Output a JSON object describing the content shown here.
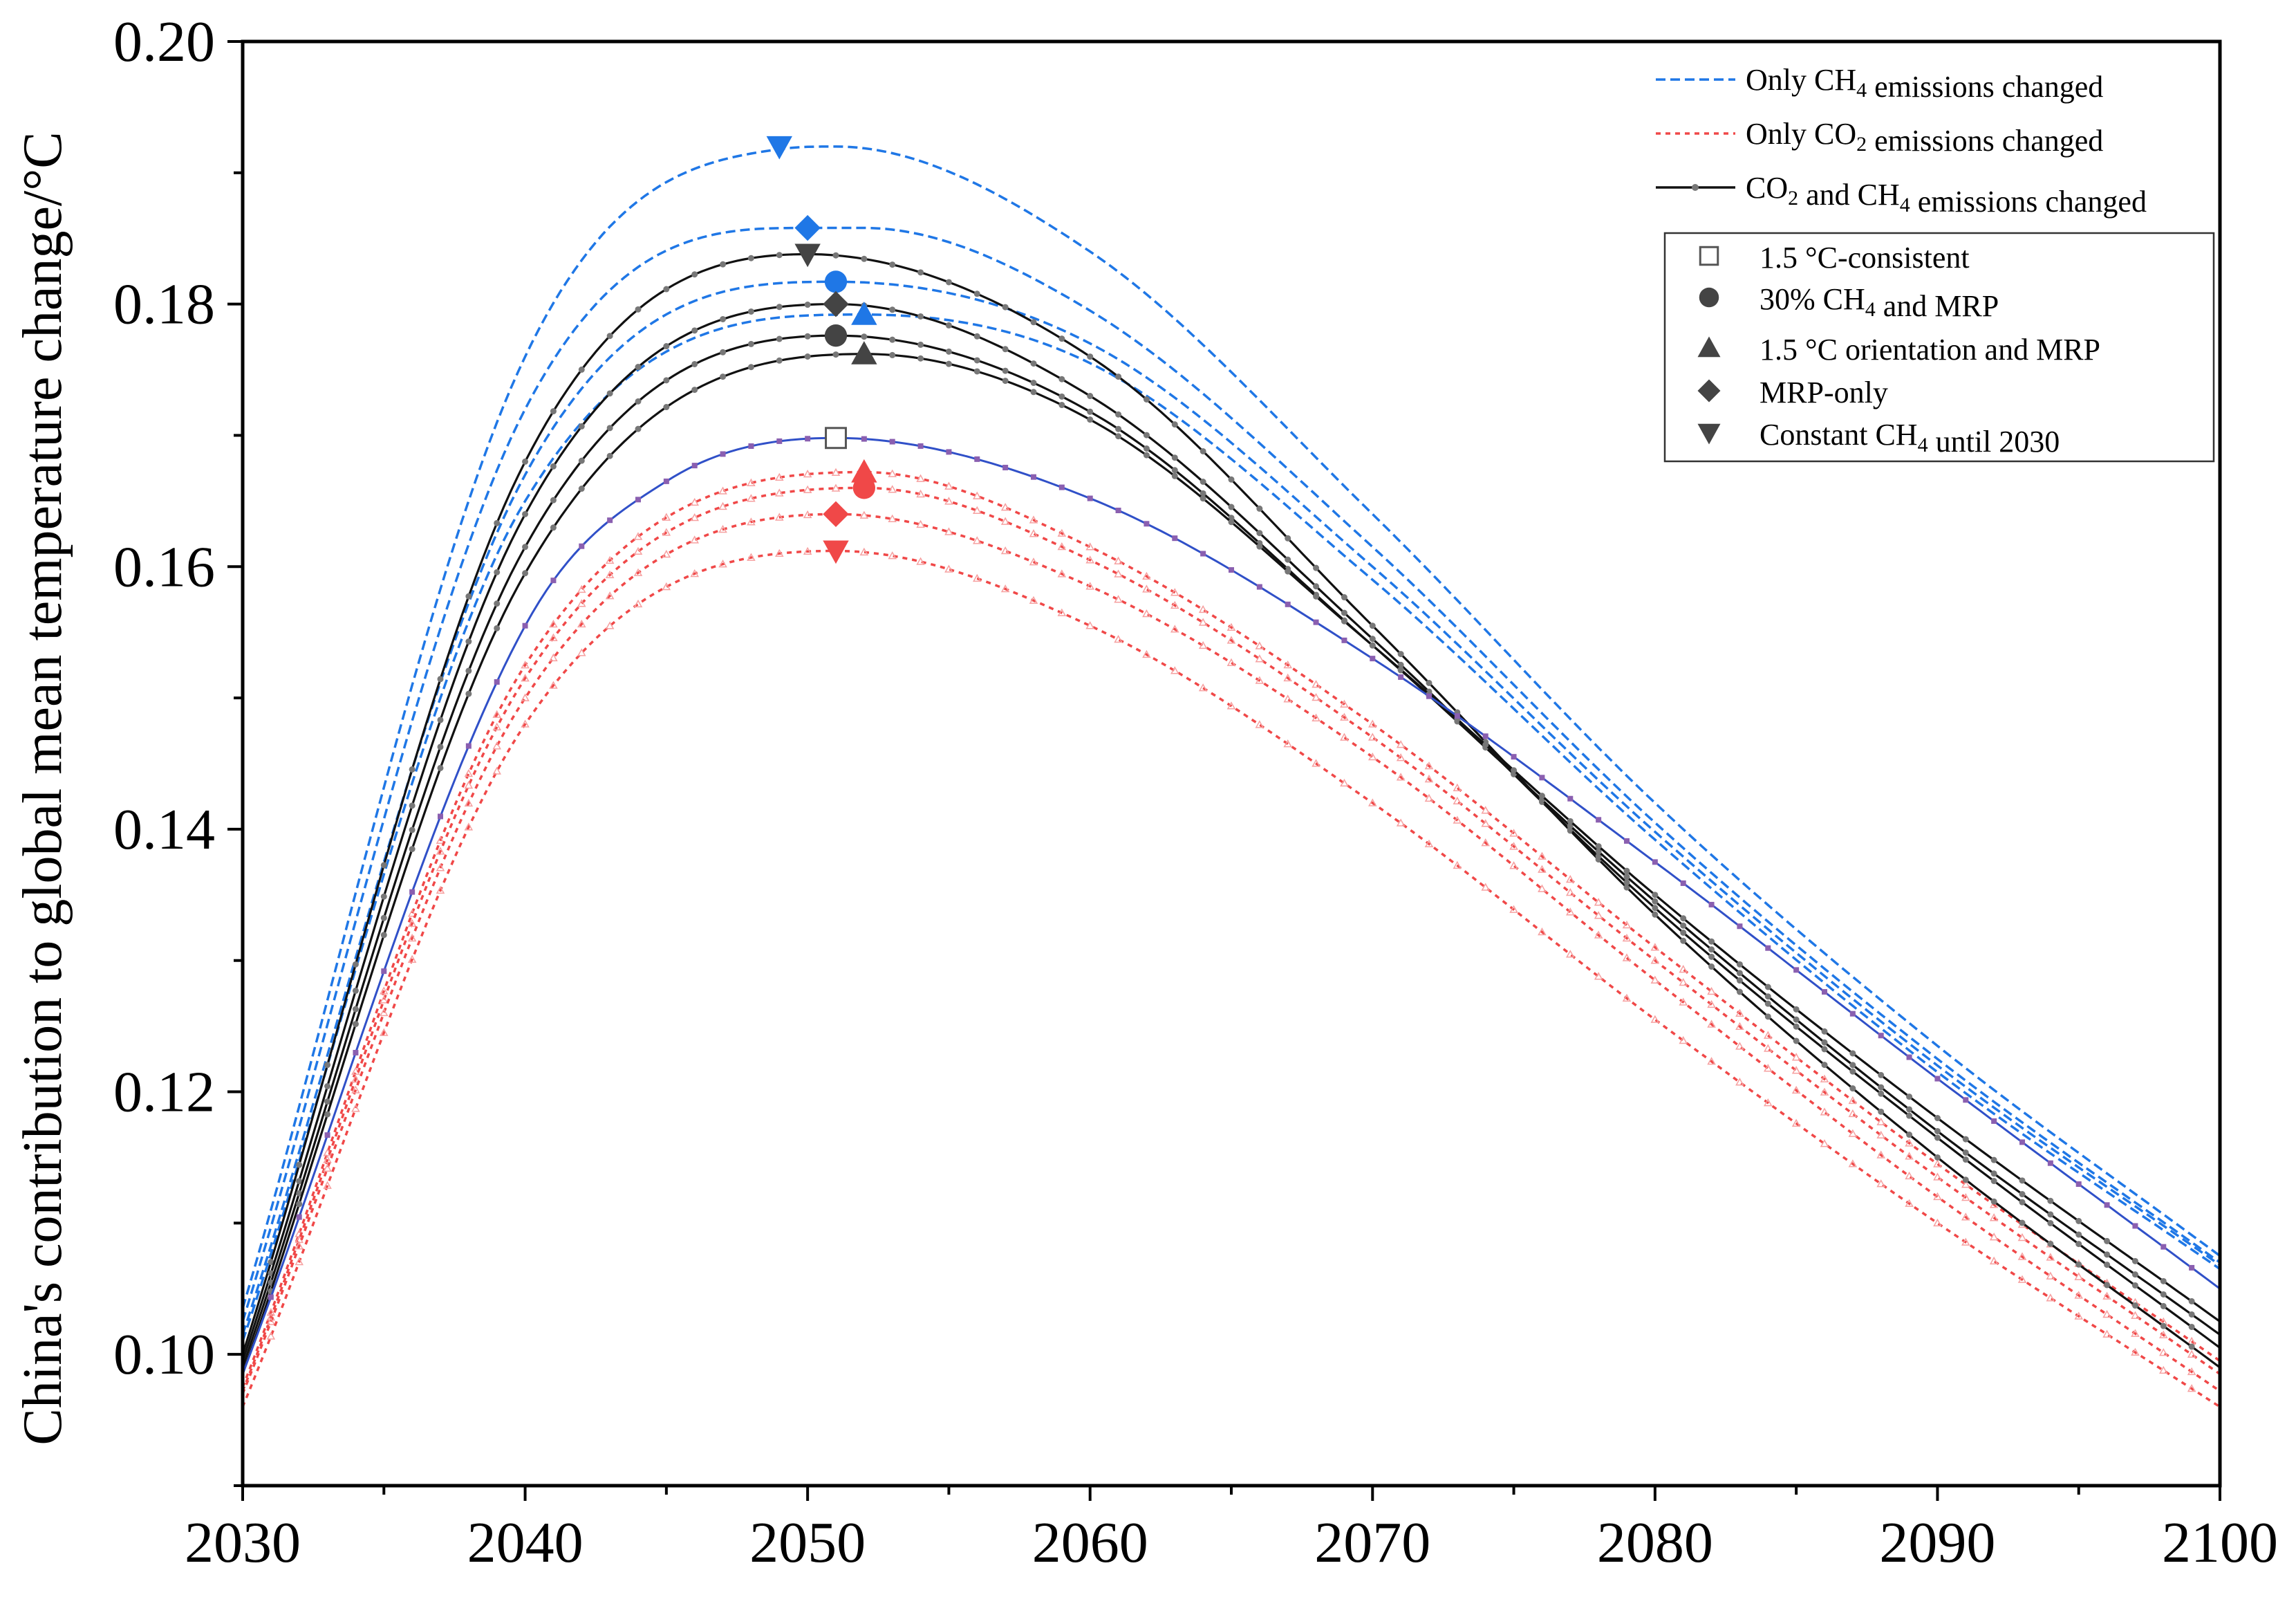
{
  "chart_data": {
    "type": "line",
    "title": "",
    "xlabel": "",
    "ylabel": "China's contribution to global mean temperature change/°C",
    "xlim": [
      2030,
      2100
    ],
    "ylim": [
      0.09,
      0.2
    ],
    "xticks": [
      2030,
      2040,
      2050,
      2060,
      2070,
      2080,
      2090,
      2100
    ],
    "xtick_labels": [
      "2030",
      "2040",
      "2050",
      "2060",
      "2070",
      "2080",
      "2090",
      "2100"
    ],
    "yticks": [
      0.1,
      0.12,
      0.14,
      0.16,
      0.18,
      0.2
    ],
    "ytick_labels": [
      "0.10",
      "0.12",
      "0.14",
      "0.16",
      "0.18",
      "0.20"
    ],
    "colors": {
      "ch4": "#1f77e6",
      "co2": "#f04848",
      "both": "#111111",
      "base": "#3050c8",
      "marker_gray": "#444444"
    },
    "series_legend": [
      {
        "key": "ch4",
        "pre": "Only CH",
        "sub": "4",
        "post": " emissions changed"
      },
      {
        "key": "co2",
        "pre": "Only CO",
        "sub": "2",
        "post": " emissions changed"
      },
      {
        "key": "both",
        "pre": "CO",
        "sub": "2",
        "post": " and CH",
        "sub2": "4",
        "post2": " emissions changed"
      }
    ],
    "scenario_legend": [
      {
        "marker": "square-open",
        "pre": "1.5 °C-consistent",
        "sub": "",
        "post": ""
      },
      {
        "marker": "circle",
        "pre": "30% CH",
        "sub": "4",
        "post": " and MRP"
      },
      {
        "marker": "triangle-up",
        "pre": "1.5 °C orientation and MRP",
        "sub": "",
        "post": ""
      },
      {
        "marker": "diamond",
        "pre": "MRP-only",
        "sub": "",
        "post": ""
      },
      {
        "marker": "triangle-down",
        "pre": "Constant CH",
        "sub": "4",
        "post": " until 2030"
      }
    ],
    "base_curve": {
      "name": "1.5 °C-consistent",
      "x": [
        2030,
        2040,
        2045,
        2051,
        2060,
        2070,
        2080,
        2090,
        2100
      ],
      "y": [
        0.0985,
        0.1555,
        0.1665,
        0.1698,
        0.1652,
        0.153,
        0.1375,
        0.121,
        0.105
      ],
      "peak": [
        2051,
        0.1698
      ]
    },
    "series": [
      {
        "name": "Only CH4 emissions changed - Constant CH4 until 2030",
        "group": "ch4",
        "x": [
          2030,
          2040,
          2049,
          2051,
          2060,
          2070,
          2080,
          2090,
          2100
        ],
        "y": [
          0.1035,
          0.176,
          0.1918,
          0.192,
          0.184,
          0.164,
          0.142,
          0.1235,
          0.1075
        ],
        "peak": [
          2049,
          0.192
        ]
      },
      {
        "name": "Only CH4 emissions changed - MRP-only",
        "group": "ch4",
        "x": [
          2030,
          2040,
          2050,
          2052,
          2060,
          2070,
          2080,
          2090,
          2100
        ],
        "y": [
          0.1025,
          0.172,
          0.1858,
          0.1858,
          0.1795,
          0.1615,
          0.1405,
          0.1225,
          0.107
        ],
        "peak": [
          2050,
          0.1858
        ]
      },
      {
        "name": "Only CH4 emissions changed - 30% CH4 and MRP",
        "group": "ch4",
        "x": [
          2030,
          2040,
          2051,
          2060,
          2070,
          2080,
          2090,
          2100
        ],
        "y": [
          0.1015,
          0.167,
          0.1817,
          0.177,
          0.16,
          0.1398,
          0.122,
          0.1068
        ],
        "peak": [
          2051,
          0.1817
        ]
      },
      {
        "name": "Only CH4 emissions changed - 1.5 °C orientation and MRP",
        "group": "ch4",
        "x": [
          2030,
          2040,
          2052,
          2060,
          2070,
          2080,
          2090,
          2100
        ],
        "y": [
          0.101,
          0.165,
          0.1792,
          0.1755,
          0.159,
          0.1392,
          0.1215,
          0.1065
        ],
        "peak": [
          2052,
          0.1792
        ]
      },
      {
        "name": "Only CO2 emissions changed - 1.5 °C orientation and MRP",
        "group": "co2",
        "x": [
          2030,
          2040,
          2052,
          2060,
          2070,
          2080,
          2090,
          2100
        ],
        "y": [
          0.0975,
          0.1525,
          0.1672,
          0.1615,
          0.148,
          0.131,
          0.1145,
          0.0995
        ],
        "peak": [
          2052,
          0.1672
        ]
      },
      {
        "name": "Only CO2 emissions changed - 30% CH4 and MRP",
        "group": "co2",
        "x": [
          2030,
          2040,
          2052,
          2060,
          2070,
          2080,
          2090,
          2100
        ],
        "y": [
          0.0972,
          0.1515,
          0.166,
          0.1605,
          0.147,
          0.13,
          0.1135,
          0.0985
        ],
        "peak": [
          2052,
          0.166
        ]
      },
      {
        "name": "Only CO2 emissions changed - MRP-only",
        "group": "co2",
        "x": [
          2030,
          2040,
          2051,
          2060,
          2070,
          2080,
          2090,
          2100
        ],
        "y": [
          0.097,
          0.15,
          0.164,
          0.1585,
          0.1455,
          0.1285,
          0.112,
          0.0972
        ],
        "peak": [
          2051,
          0.164
        ]
      },
      {
        "name": "Only CO2 emissions changed - Constant CH4 until 2030",
        "group": "co2",
        "x": [
          2030,
          2040,
          2051,
          2060,
          2070,
          2080,
          2090,
          2100
        ],
        "y": [
          0.096,
          0.148,
          0.1612,
          0.1555,
          0.142,
          0.1255,
          0.11,
          0.096
        ],
        "peak": [
          2051,
          0.1612
        ]
      },
      {
        "name": "CO2 and CH4 emissions changed - Constant CH4 until 2030",
        "group": "both",
        "x": [
          2030,
          2040,
          2050,
          2060,
          2070,
          2080,
          2090,
          2100
        ],
        "y": [
          0.1,
          0.168,
          0.1838,
          0.176,
          0.1555,
          0.1335,
          0.115,
          0.099
        ],
        "peak": [
          2050,
          0.1838
        ]
      },
      {
        "name": "CO2 and CH4 emissions changed - MRP-only",
        "group": "both",
        "x": [
          2030,
          2040,
          2051,
          2060,
          2070,
          2080,
          2090,
          2100
        ],
        "y": [
          0.0995,
          0.164,
          0.18,
          0.173,
          0.1545,
          0.134,
          0.1165,
          0.1005
        ],
        "peak": [
          2051,
          0.18
        ]
      },
      {
        "name": "CO2 and CH4 emissions changed - 30% CH4 and MRP",
        "group": "both",
        "x": [
          2030,
          2040,
          2051,
          2060,
          2070,
          2080,
          2090,
          2100
        ],
        "y": [
          0.099,
          0.1615,
          0.1776,
          0.1718,
          0.154,
          0.1345,
          0.117,
          0.1015
        ],
        "peak": [
          2051,
          0.1776
        ]
      },
      {
        "name": "CO2 and CH4 emissions changed - 1.5 °C orientation and MRP",
        "group": "both",
        "x": [
          2030,
          2040,
          2052,
          2060,
          2070,
          2080,
          2090,
          2100
        ],
        "y": [
          0.0985,
          0.1595,
          0.1762,
          0.1712,
          0.154,
          0.135,
          0.118,
          0.1025
        ],
        "peak": [
          2052,
          0.1762
        ]
      }
    ],
    "markers": [
      {
        "shape": "square-open",
        "group": "base",
        "x": 2051,
        "y": 0.1698
      },
      {
        "shape": "triangle-down",
        "group": "ch4",
        "x": 2049,
        "y": 0.192
      },
      {
        "shape": "diamond",
        "group": "ch4",
        "x": 2050,
        "y": 0.1858
      },
      {
        "shape": "circle",
        "group": "ch4",
        "x": 2051,
        "y": 0.1817
      },
      {
        "shape": "triangle-up",
        "group": "ch4",
        "x": 2052,
        "y": 0.1792
      },
      {
        "shape": "triangle-down",
        "group": "both",
        "x": 2050,
        "y": 0.1838
      },
      {
        "shape": "diamond",
        "group": "both",
        "x": 2051,
        "y": 0.18
      },
      {
        "shape": "circle",
        "group": "both",
        "x": 2051,
        "y": 0.1776
      },
      {
        "shape": "triangle-up",
        "group": "both",
        "x": 2052,
        "y": 0.1762
      },
      {
        "shape": "triangle-up",
        "group": "co2",
        "x": 2052,
        "y": 0.1672
      },
      {
        "shape": "circle",
        "group": "co2",
        "x": 2052,
        "y": 0.166
      },
      {
        "shape": "diamond",
        "group": "co2",
        "x": 2051,
        "y": 0.164
      },
      {
        "shape": "triangle-down",
        "group": "co2",
        "x": 2051,
        "y": 0.1612
      }
    ]
  }
}
